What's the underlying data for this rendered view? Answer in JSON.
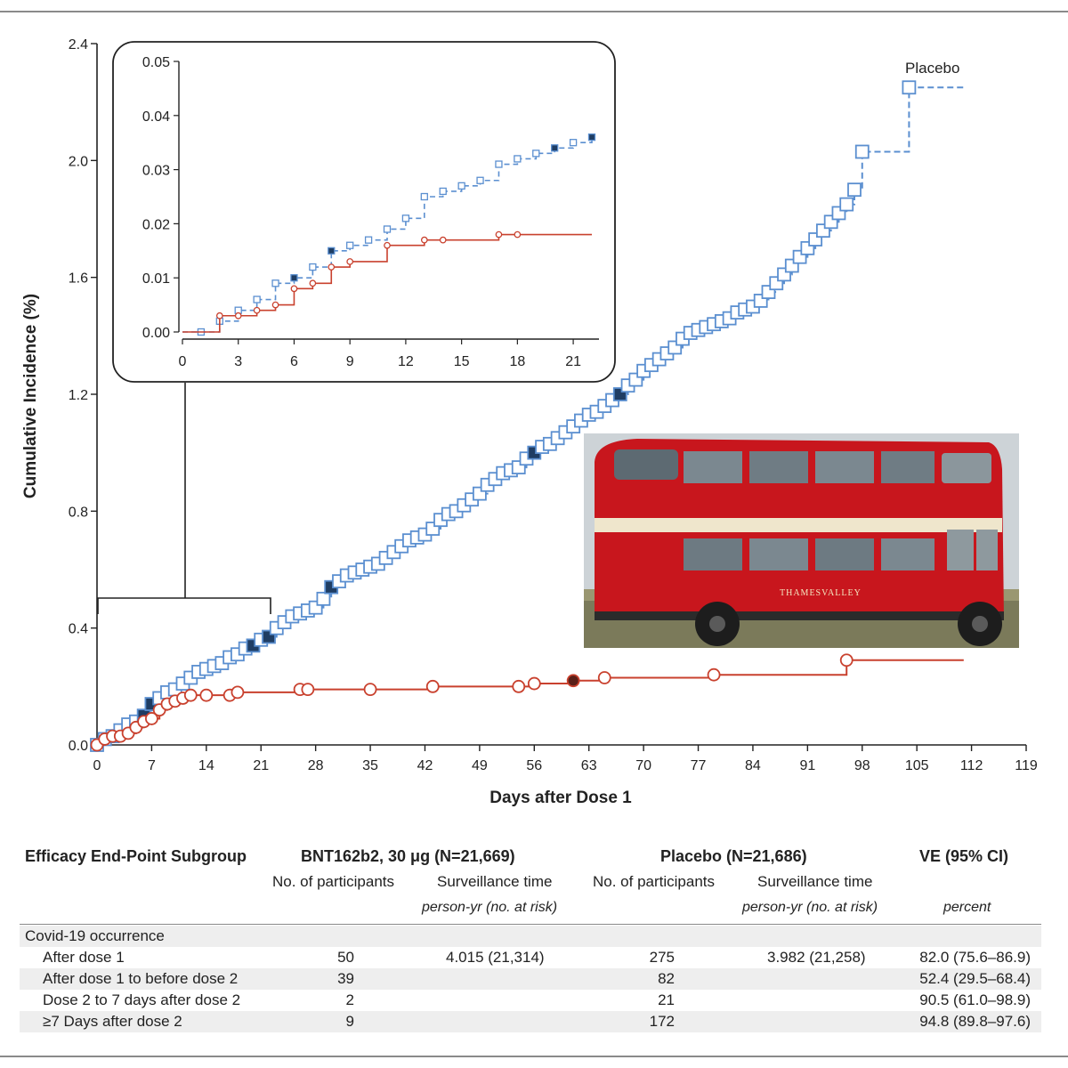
{
  "chart_data": [
    {
      "type": "line",
      "title": "",
      "xlabel": "Days after Dose 1",
      "ylabel": "Cumulative Incidence (%)",
      "xlim": [
        0,
        119
      ],
      "ylim": [
        0,
        2.4
      ],
      "x_ticks": [
        "0",
        "7",
        "14",
        "21",
        "28",
        "35",
        "42",
        "49",
        "56",
        "63",
        "70",
        "77",
        "84",
        "91",
        "98",
        "105",
        "112",
        "119"
      ],
      "y_ticks": [
        "0.0",
        "0.4",
        "0.8",
        "1.2",
        "1.6",
        "2.0",
        "2.4"
      ],
      "grid": false,
      "series": [
        {
          "name": "Placebo",
          "color": "#5b8fd0",
          "x": [
            0,
            1,
            2,
            3,
            4,
            5,
            6,
            7,
            8,
            9,
            10,
            11,
            12,
            13,
            14,
            15,
            16,
            17,
            18,
            19,
            20,
            21,
            22,
            23,
            24,
            25,
            26,
            27,
            28,
            29,
            30,
            31,
            32,
            33,
            34,
            35,
            36,
            37,
            38,
            39,
            40,
            41,
            42,
            43,
            44,
            45,
            46,
            47,
            48,
            49,
            50,
            51,
            52,
            53,
            54,
            55,
            56,
            57,
            58,
            59,
            60,
            61,
            62,
            63,
            64,
            65,
            66,
            67,
            68,
            69,
            70,
            71,
            72,
            73,
            74,
            75,
            76,
            77,
            78,
            79,
            80,
            81,
            82,
            83,
            84,
            85,
            86,
            87,
            88,
            89,
            90,
            91,
            92,
            93,
            94,
            95,
            96,
            97,
            98,
            104,
            111
          ],
          "y": [
            0.0,
            0.02,
            0.03,
            0.05,
            0.07,
            0.08,
            0.1,
            0.14,
            0.16,
            0.18,
            0.19,
            0.21,
            0.23,
            0.25,
            0.26,
            0.27,
            0.28,
            0.3,
            0.31,
            0.33,
            0.34,
            0.36,
            0.37,
            0.4,
            0.42,
            0.44,
            0.45,
            0.46,
            0.47,
            0.5,
            0.54,
            0.56,
            0.58,
            0.59,
            0.6,
            0.61,
            0.62,
            0.64,
            0.66,
            0.68,
            0.7,
            0.71,
            0.72,
            0.74,
            0.77,
            0.79,
            0.8,
            0.82,
            0.84,
            0.86,
            0.89,
            0.91,
            0.93,
            0.94,
            0.95,
            0.98,
            1.0,
            1.02,
            1.03,
            1.05,
            1.07,
            1.09,
            1.11,
            1.13,
            1.14,
            1.16,
            1.18,
            1.2,
            1.23,
            1.25,
            1.28,
            1.3,
            1.32,
            1.34,
            1.36,
            1.39,
            1.41,
            1.42,
            1.43,
            1.44,
            1.45,
            1.46,
            1.48,
            1.49,
            1.5,
            1.52,
            1.55,
            1.58,
            1.61,
            1.64,
            1.67,
            1.7,
            1.73,
            1.76,
            1.79,
            1.82,
            1.85,
            1.9,
            2.03,
            2.25,
            2.25
          ],
          "surveillance_markers_x": [
            6,
            7,
            20,
            22,
            30,
            56,
            67
          ]
        },
        {
          "name": "BNT162b2",
          "color": "#c9412e",
          "x": [
            0,
            1,
            2,
            3,
            4,
            5,
            6,
            7,
            8,
            9,
            10,
            11,
            12,
            14,
            17,
            18,
            26,
            27,
            35,
            43,
            54,
            56,
            61,
            65,
            79,
            96,
            111
          ],
          "y": [
            0.0,
            0.02,
            0.03,
            0.03,
            0.04,
            0.06,
            0.08,
            0.09,
            0.12,
            0.14,
            0.15,
            0.16,
            0.17,
            0.17,
            0.17,
            0.18,
            0.19,
            0.19,
            0.19,
            0.2,
            0.2,
            0.21,
            0.22,
            0.23,
            0.24,
            0.29,
            0.29
          ],
          "surveillance_markers_x": [
            61
          ]
        }
      ]
    },
    {
      "type": "line",
      "title": "",
      "xlim": [
        0,
        22
      ],
      "ylim": [
        0,
        0.05
      ],
      "x_ticks": [
        "0",
        "3",
        "6",
        "9",
        "12",
        "15",
        "18",
        "21"
      ],
      "y_ticks": [
        "0.00",
        "0.01",
        "0.02",
        "0.03",
        "0.04",
        "0.05"
      ],
      "series": [
        {
          "name": "Placebo",
          "x": [
            0,
            1,
            2,
            3,
            4,
            5,
            6,
            7,
            8,
            9,
            10,
            11,
            12,
            13,
            14,
            15,
            16,
            17,
            18,
            19,
            20,
            21,
            22
          ],
          "y": [
            0.0,
            0.0,
            0.002,
            0.004,
            0.006,
            0.009,
            0.01,
            0.012,
            0.015,
            0.016,
            0.017,
            0.019,
            0.021,
            0.025,
            0.026,
            0.027,
            0.028,
            0.031,
            0.032,
            0.033,
            0.034,
            0.035,
            0.036
          ]
        },
        {
          "name": "BNT162b2",
          "x": [
            0,
            2,
            3,
            4,
            5,
            6,
            7,
            8,
            9,
            11,
            13,
            14,
            17,
            18,
            22
          ],
          "y": [
            0.0,
            0.003,
            0.003,
            0.004,
            0.005,
            0.008,
            0.009,
            0.012,
            0.013,
            0.016,
            0.017,
            0.017,
            0.018,
            0.018,
            0.018
          ]
        }
      ]
    }
  ],
  "labels": {
    "placebo_series": "Placebo"
  },
  "photo": {
    "bus_fleet_name": "THAMESVALLEY"
  },
  "table": {
    "headers": {
      "subgroup": "Efficacy End-Point Subgroup",
      "bnt": "BNT162b2, 30 μg (N=21,669)",
      "placebo": "Placebo (N=21,686)",
      "ve": "VE (95% CI)"
    },
    "subheaders": {
      "participants": "No. of participants",
      "surveillance": "Surveillance time",
      "person_yr": "person-yr (no. at risk)",
      "percent": "percent"
    },
    "group_label": "Covid-19 occurrence",
    "rows": [
      {
        "label": "After dose 1",
        "bnt_n": "50",
        "bnt_time": "4.015 (21,314)",
        "pl_n": "275",
        "pl_time": "3.982 (21,258)",
        "ve": "82.0 (75.6–86.9)"
      },
      {
        "label": "After dose 1 to before dose 2",
        "bnt_n": "39",
        "bnt_time": "",
        "pl_n": "82",
        "pl_time": "",
        "ve": "52.4 (29.5–68.4)"
      },
      {
        "label": "Dose 2 to 7 days after dose 2",
        "bnt_n": "2",
        "bnt_time": "",
        "pl_n": "21",
        "pl_time": "",
        "ve": "90.5 (61.0–98.9)"
      },
      {
        "label": "≥7 Days after dose 2",
        "bnt_n": "9",
        "bnt_time": "",
        "pl_n": "172",
        "pl_time": "",
        "ve": "94.8 (89.8–97.6)"
      }
    ]
  }
}
